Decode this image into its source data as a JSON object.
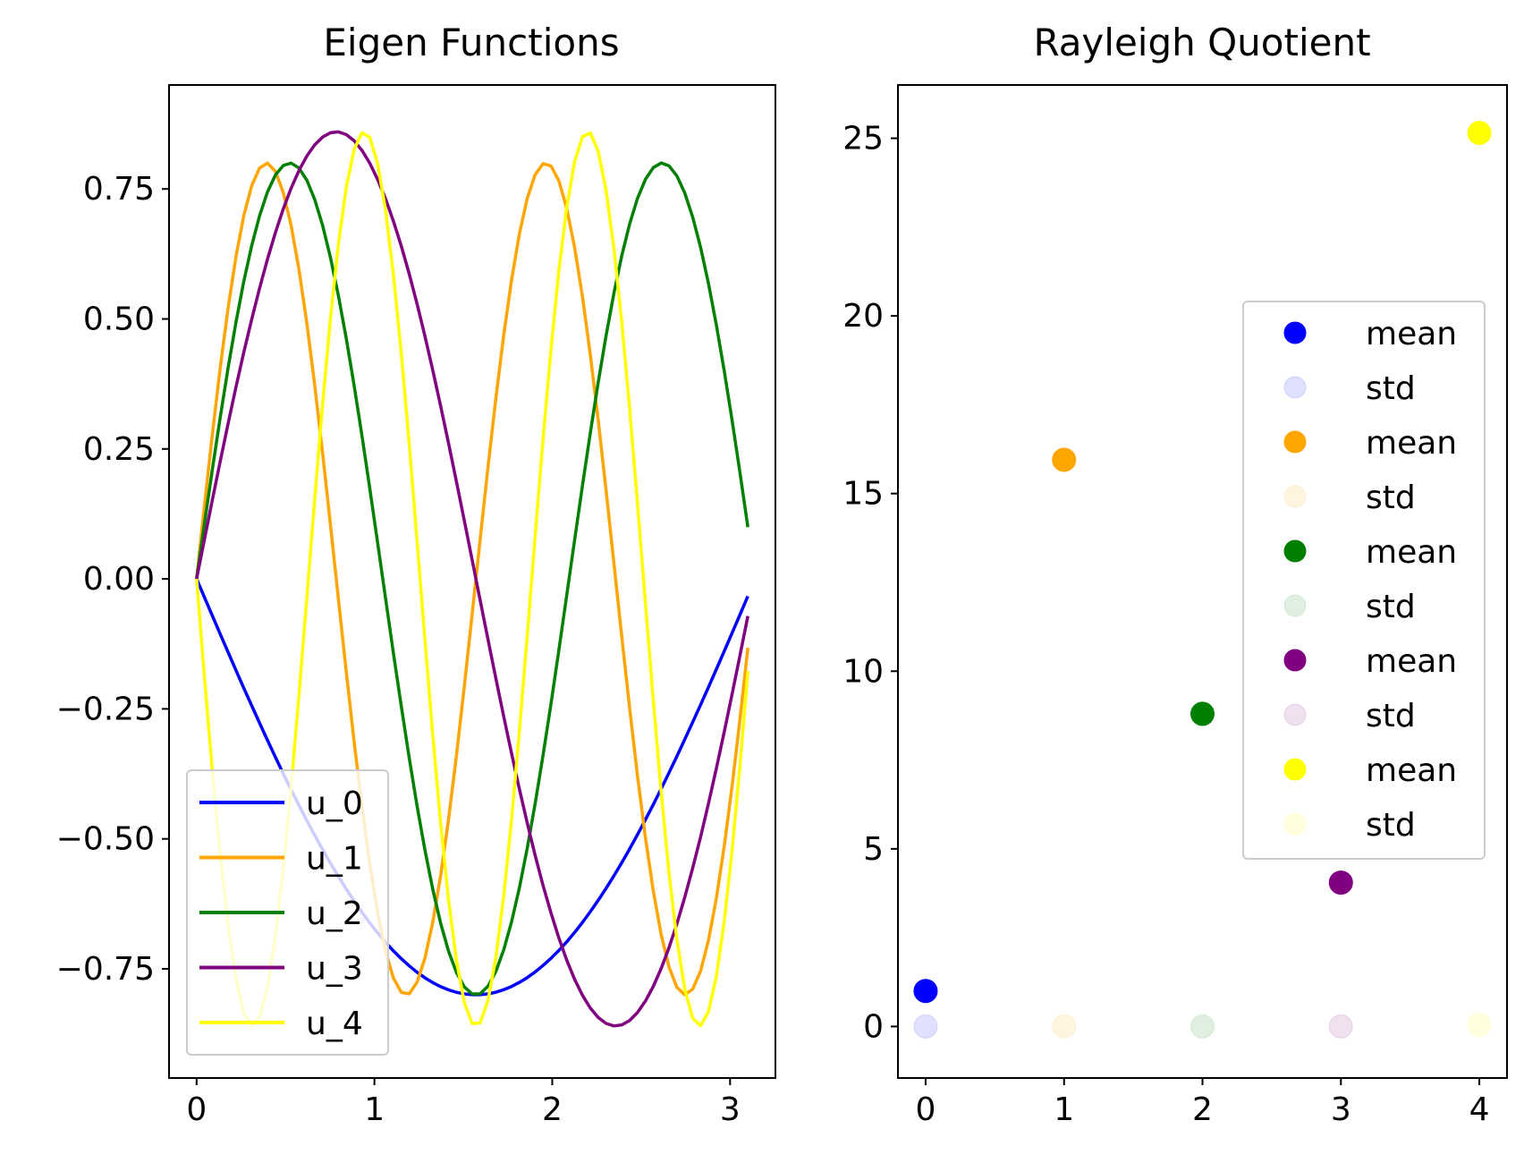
{
  "chart_data": [
    {
      "type": "line",
      "title": "Eigen Functions",
      "xlabel": "",
      "ylabel": "",
      "xlim": [
        -0.155,
        3.255
      ],
      "ylim": [
        -0.96,
        0.95
      ],
      "x_ticks": [
        0,
        1,
        2,
        3
      ],
      "y_ticks": [
        0.75,
        0.5,
        0.25,
        0.0,
        -0.25,
        -0.5,
        -0.75
      ],
      "x_tick_labels": [
        "0",
        "1",
        "2",
        "3"
      ],
      "y_tick_labels": [
        "0.75",
        "0.50",
        "0.25",
        "0.00",
        "−0.25",
        "−0.50",
        "−0.75"
      ],
      "grid": false,
      "legend_position": "lower-left",
      "x_domain": [
        0,
        3.1
      ],
      "series": [
        {
          "name": "u_0",
          "color": "#0000ff",
          "amplitude": 0.8,
          "frequency": 1,
          "phase_sign": -1
        },
        {
          "name": "u_1",
          "color": "#ffa500",
          "amplitude": 0.8,
          "frequency": 4,
          "phase_sign": 1
        },
        {
          "name": "u_2",
          "color": "#008000",
          "amplitude": 0.8,
          "frequency": 3,
          "phase_sign": 1
        },
        {
          "name": "u_3",
          "color": "#800080",
          "amplitude": 0.86,
          "frequency": 2,
          "phase_sign": 1
        },
        {
          "name": "u_4",
          "color": "#ffff00",
          "amplitude": 0.86,
          "frequency": 5,
          "phase_sign": -1
        }
      ]
    },
    {
      "type": "scatter",
      "title": "Rayleigh Quotient",
      "xlabel": "",
      "ylabel": "",
      "xlim": [
        -0.2,
        4.2
      ],
      "ylim": [
        -1.45,
        26.5
      ],
      "x_ticks": [
        0,
        1,
        2,
        3,
        4
      ],
      "y_ticks": [
        25,
        20,
        15,
        10,
        5,
        0
      ],
      "x_tick_labels": [
        "0",
        "1",
        "2",
        "3",
        "4"
      ],
      "y_tick_labels": [
        "25",
        "20",
        "15",
        "10",
        "5",
        "0"
      ],
      "grid": false,
      "legend_position": "center-right",
      "series": [
        {
          "name": "mean",
          "color": "#0000ff",
          "alpha": 1.0,
          "points": [
            [
              0,
              1.0
            ]
          ]
        },
        {
          "name": "std",
          "color": "#0000ff",
          "alpha": 0.12,
          "points": [
            [
              0,
              0.0
            ]
          ]
        },
        {
          "name": "mean",
          "color": "#ffa500",
          "alpha": 1.0,
          "points": [
            [
              1,
              15.95
            ]
          ]
        },
        {
          "name": "std",
          "color": "#ffa500",
          "alpha": 0.12,
          "points": [
            [
              1,
              0.0
            ]
          ]
        },
        {
          "name": "mean",
          "color": "#008000",
          "alpha": 1.0,
          "points": [
            [
              2,
              8.8
            ]
          ]
        },
        {
          "name": "std",
          "color": "#008000",
          "alpha": 0.12,
          "points": [
            [
              2,
              0.0
            ]
          ]
        },
        {
          "name": "mean",
          "color": "#800080",
          "alpha": 1.0,
          "points": [
            [
              3,
              4.05
            ]
          ]
        },
        {
          "name": "std",
          "color": "#800080",
          "alpha": 0.12,
          "points": [
            [
              3,
              0.0
            ]
          ]
        },
        {
          "name": "mean",
          "color": "#ffff00",
          "alpha": 1.0,
          "points": [
            [
              4,
              25.15
            ]
          ]
        },
        {
          "name": "std",
          "color": "#ffff00",
          "alpha": 0.12,
          "points": [
            [
              4,
              0.05
            ]
          ]
        }
      ]
    }
  ]
}
